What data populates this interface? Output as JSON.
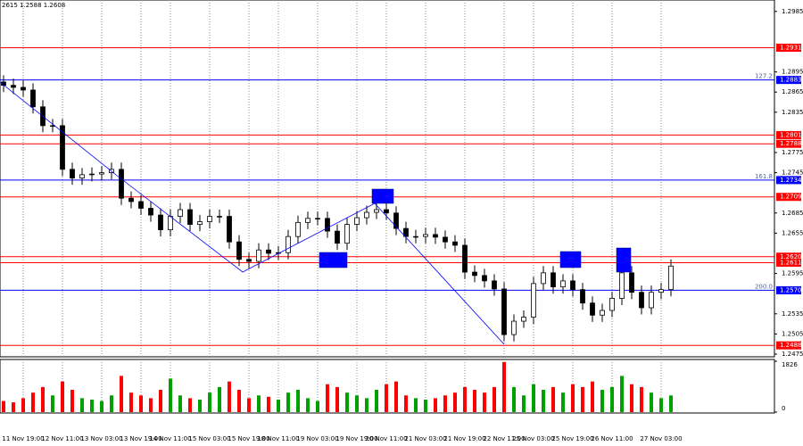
{
  "header": "2615 1.2588 1.2608",
  "chart_data": [
    {
      "type": "candlestick",
      "up_color": "#000000",
      "down_color": "#000000",
      "ylim": [
        1.2471,
        1.3002
      ],
      "yticks": [
        1.2985,
        1.2895,
        1.2865,
        1.2835,
        1.2775,
        1.2745,
        1.2685,
        1.2655,
        1.2595,
        1.2535,
        1.2505,
        1.2475
      ],
      "categories": [
        null,
        null,
        "11 Nov 19:00",
        null,
        null,
        null,
        "12 Nov 11:00",
        null,
        null,
        null,
        "13 Nov 03:00",
        null,
        null,
        null,
        "13 Nov 19:00",
        null,
        null,
        "14 Nov 11:00",
        null,
        null,
        null,
        "15 Nov 03:00",
        null,
        null,
        null,
        "15 Nov 19:00",
        null,
        null,
        "18 Nov 11:00",
        null,
        null,
        null,
        "19 Nov 03:00",
        null,
        null,
        null,
        "19 Nov 19:00",
        null,
        null,
        "20 Nov 11:00",
        null,
        null,
        null,
        "21 Nov 03:00",
        null,
        null,
        null,
        "21 Nov 19:00",
        null,
        null,
        null,
        "22 Nov 11:00",
        null,
        null,
        "25 Nov 03:00",
        null,
        null,
        null,
        "25 Nov 19:00",
        null,
        null,
        null,
        "26 Nov 11:00",
        null,
        null,
        null,
        null,
        "27 Nov 03:00",
        null
      ],
      "open": [
        1.288,
        1.2875,
        1.2872,
        1.2868,
        1.2843,
        1.2815,
        1.2815,
        1.275,
        1.2737,
        1.2742,
        1.2743,
        1.2745,
        1.275,
        1.2707,
        1.2702,
        1.2692,
        1.2682,
        1.266,
        1.268,
        1.269,
        1.2668,
        1.2672,
        1.268,
        1.268,
        1.2642,
        1.2616,
        1.2613,
        1.263,
        1.2625,
        1.2626,
        1.265,
        1.2671,
        1.2677,
        1.2677,
        1.2658,
        1.264,
        1.2668,
        1.2678,
        1.2686,
        1.269,
        1.2685,
        1.2662,
        1.265,
        1.265,
        1.2653,
        1.2649,
        1.2642,
        1.2637,
        1.2597,
        1.2592,
        1.2584,
        1.2572,
        1.2504,
        1.2524,
        1.253,
        1.258,
        1.2596,
        1.2575,
        1.2584,
        1.2571,
        1.2551,
        1.2533,
        1.254,
        1.2558,
        1.2596,
        1.2567,
        1.2544,
        1.2567,
        1.2571
      ],
      "high": [
        1.289,
        1.2885,
        1.2882,
        1.2878,
        1.2853,
        1.2825,
        1.2825,
        1.276,
        1.2752,
        1.2753,
        1.2755,
        1.276,
        1.276,
        1.2717,
        1.2712,
        1.2702,
        1.2692,
        1.269,
        1.27,
        1.27,
        1.2682,
        1.269,
        1.269,
        1.269,
        1.2652,
        1.2626,
        1.264,
        1.264,
        1.2636,
        1.266,
        1.2681,
        1.2687,
        1.2687,
        1.2687,
        1.2668,
        1.2678,
        1.2688,
        1.2696,
        1.27,
        1.27,
        1.2695,
        1.2672,
        1.266,
        1.2663,
        1.2663,
        1.2659,
        1.2652,
        1.2647,
        1.2607,
        1.2602,
        1.2594,
        1.2582,
        1.2534,
        1.254,
        1.259,
        1.2606,
        1.2606,
        1.2594,
        1.2594,
        1.2581,
        1.2561,
        1.255,
        1.2568,
        1.2606,
        1.2606,
        1.2577,
        1.2577,
        1.2581,
        1.2616
      ],
      "low": [
        1.2865,
        1.2862,
        1.2858,
        1.2833,
        1.2805,
        1.2805,
        1.274,
        1.2727,
        1.2727,
        1.2732,
        1.2733,
        1.2735,
        1.2697,
        1.2692,
        1.2682,
        1.2672,
        1.265,
        1.265,
        1.267,
        1.2658,
        1.2658,
        1.2662,
        1.267,
        1.2632,
        1.2606,
        1.2603,
        1.2603,
        1.2615,
        1.2615,
        1.2616,
        1.264,
        1.2661,
        1.2667,
        1.2648,
        1.263,
        1.263,
        1.2658,
        1.2668,
        1.2676,
        1.2675,
        1.2652,
        1.264,
        1.264,
        1.264,
        1.2639,
        1.2632,
        1.2627,
        1.2587,
        1.2582,
        1.2574,
        1.2562,
        1.2494,
        1.2494,
        1.2514,
        1.252,
        1.257,
        1.2565,
        1.2565,
        1.2561,
        1.2541,
        1.2523,
        1.2523,
        1.253,
        1.2548,
        1.2557,
        1.2534,
        1.2534,
        1.2557,
        1.2561
      ],
      "close": [
        1.2875,
        1.2872,
        1.2868,
        1.2843,
        1.2815,
        1.2815,
        1.275,
        1.2737,
        1.2742,
        1.2743,
        1.2745,
        1.275,
        1.2707,
        1.2702,
        1.2692,
        1.2682,
        1.266,
        1.268,
        1.269,
        1.2668,
        1.2672,
        1.268,
        1.268,
        1.2642,
        1.2616,
        1.2613,
        1.263,
        1.2625,
        1.2626,
        1.265,
        1.2671,
        1.2677,
        1.2677,
        1.2658,
        1.264,
        1.2668,
        1.2678,
        1.2686,
        1.269,
        1.2685,
        1.2662,
        1.265,
        1.265,
        1.2653,
        1.2649,
        1.2642,
        1.2637,
        1.2597,
        1.2592,
        1.2584,
        1.2572,
        1.2504,
        1.2524,
        1.253,
        1.258,
        1.2596,
        1.2575,
        1.2584,
        1.2571,
        1.2551,
        1.2533,
        1.254,
        1.2558,
        1.2596,
        1.2567,
        1.2544,
        1.2567,
        1.2571,
        1.2606
      ],
      "levels": [
        {
          "value": 1.2931,
          "label": "1.2931",
          "color": "#ff0000"
        },
        {
          "value": 1.2883,
          "label": "1.2883",
          "color": "#0000ff",
          "fib": "127.2"
        },
        {
          "value": 1.2801,
          "label": "1.2801",
          "color": "#ff0000"
        },
        {
          "value": 1.2788,
          "label": "1.2788",
          "color": "#ff0000"
        },
        {
          "value": 1.2734,
          "label": "1.2734",
          "color": "#0000ff",
          "fib": "161.8"
        },
        {
          "value": 1.2709,
          "label": "1.2709",
          "color": "#ff0000"
        },
        {
          "value": 1.262,
          "label": "1.2620",
          "color": "#ff0000"
        },
        {
          "value": 1.2611,
          "label": "1.2611",
          "color": "#ff0000"
        },
        {
          "value": 1.257,
          "label": "1.2570",
          "color": "#0000ff",
          "fib": "200.0"
        },
        {
          "value": 1.2488,
          "label": "1.2488",
          "color": "#ff0000"
        }
      ]
    },
    {
      "type": "bar",
      "up_color": "#00a000",
      "down_color": "#ff0000",
      "ylim": [
        0,
        1826
      ],
      "yticks": [
        0,
        1826
      ],
      "values": [
        400,
        350,
        500,
        700,
        900,
        600,
        1100,
        800,
        500,
        450,
        400,
        600,
        1300,
        700,
        600,
        500,
        800,
        1200,
        600,
        500,
        450,
        700,
        900,
        1100,
        800,
        500,
        600,
        550,
        450,
        700,
        800,
        500,
        400,
        1000,
        900,
        700,
        600,
        500,
        800,
        1000,
        1100,
        600,
        500,
        450,
        500,
        600,
        700,
        900,
        800,
        700,
        900,
        1800,
        900,
        600,
        1000,
        800,
        900,
        700,
        1000,
        900,
        1100,
        800,
        900,
        1300,
        1000,
        900,
        700,
        500,
        600
      ]
    }
  ]
}
